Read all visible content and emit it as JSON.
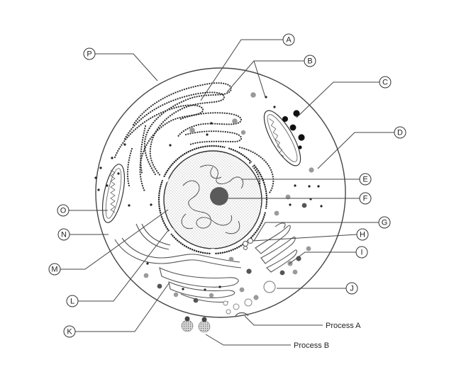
{
  "callouts": [
    {
      "id": "A",
      "label": "A"
    },
    {
      "id": "B",
      "label": "B"
    },
    {
      "id": "C",
      "label": "C"
    },
    {
      "id": "D",
      "label": "D"
    },
    {
      "id": "E",
      "label": "E"
    },
    {
      "id": "F",
      "label": "F"
    },
    {
      "id": "G",
      "label": "G"
    },
    {
      "id": "H",
      "label": "H"
    },
    {
      "id": "I",
      "label": "I"
    },
    {
      "id": "J",
      "label": "J"
    },
    {
      "id": "K",
      "label": "K"
    },
    {
      "id": "L",
      "label": "L"
    },
    {
      "id": "M",
      "label": "M"
    },
    {
      "id": "N",
      "label": "N"
    },
    {
      "id": "O",
      "label": "O"
    },
    {
      "id": "P",
      "label": "P"
    }
  ],
  "processes": {
    "a": "Process A",
    "b": "Process B"
  }
}
